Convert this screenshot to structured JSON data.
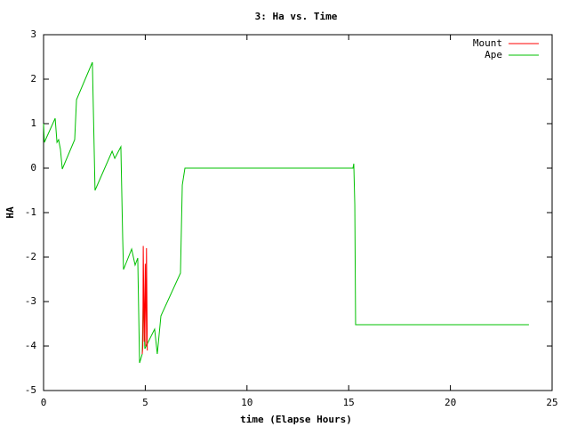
{
  "chart_data": {
    "type": "line",
    "title": "3: Ha vs. Time",
    "x_label": "time (Elapse Hours)",
    "y_label": "HA",
    "xlim": [
      0,
      25
    ],
    "xticks": [
      0,
      5,
      10,
      15,
      20,
      25
    ],
    "ylim": [
      -5,
      3
    ],
    "yticks": [
      -5,
      -4,
      -3,
      -2,
      -1,
      0,
      1,
      2,
      3
    ],
    "legend": "top-right",
    "series": [
      {
        "name": "Mount",
        "color": "#ff0000",
        "x": [
          4.85,
          4.88,
          4.9,
          4.95,
          5.0,
          5.03,
          5.06,
          5.1
        ],
        "values": [
          -4.18,
          -4.0,
          -1.75,
          -3.9,
          -2.15,
          -4.0,
          -1.8,
          -4.1
        ]
      },
      {
        "name": "Ape",
        "color": "#00c000",
        "x": [
          0,
          0.04,
          0.57,
          0.66,
          0.74,
          0.83,
          0.92,
          1.53,
          1.62,
          2.4,
          2.53,
          3.37,
          3.5,
          3.8,
          3.89,
          3.93,
          4.33,
          4.5,
          4.63,
          4.72,
          4.85,
          4.9,
          4.98,
          5.46,
          5.59,
          5.77,
          6.73,
          6.82,
          6.95,
          15.21,
          15.25,
          15.3,
          15.34,
          23.86
        ],
        "values": [
          1.0,
          0.58,
          1.12,
          0.58,
          0.64,
          0.42,
          -0.02,
          0.64,
          1.54,
          2.38,
          -0.5,
          0.38,
          0.22,
          0.48,
          -1.58,
          -2.28,
          -1.82,
          -2.18,
          -2.02,
          -4.38,
          -4.18,
          -2.98,
          -4.06,
          -3.62,
          -4.18,
          -3.32,
          -2.36,
          -0.38,
          0,
          0,
          0.1,
          -0.82,
          -3.52,
          -3.52
        ]
      }
    ]
  }
}
